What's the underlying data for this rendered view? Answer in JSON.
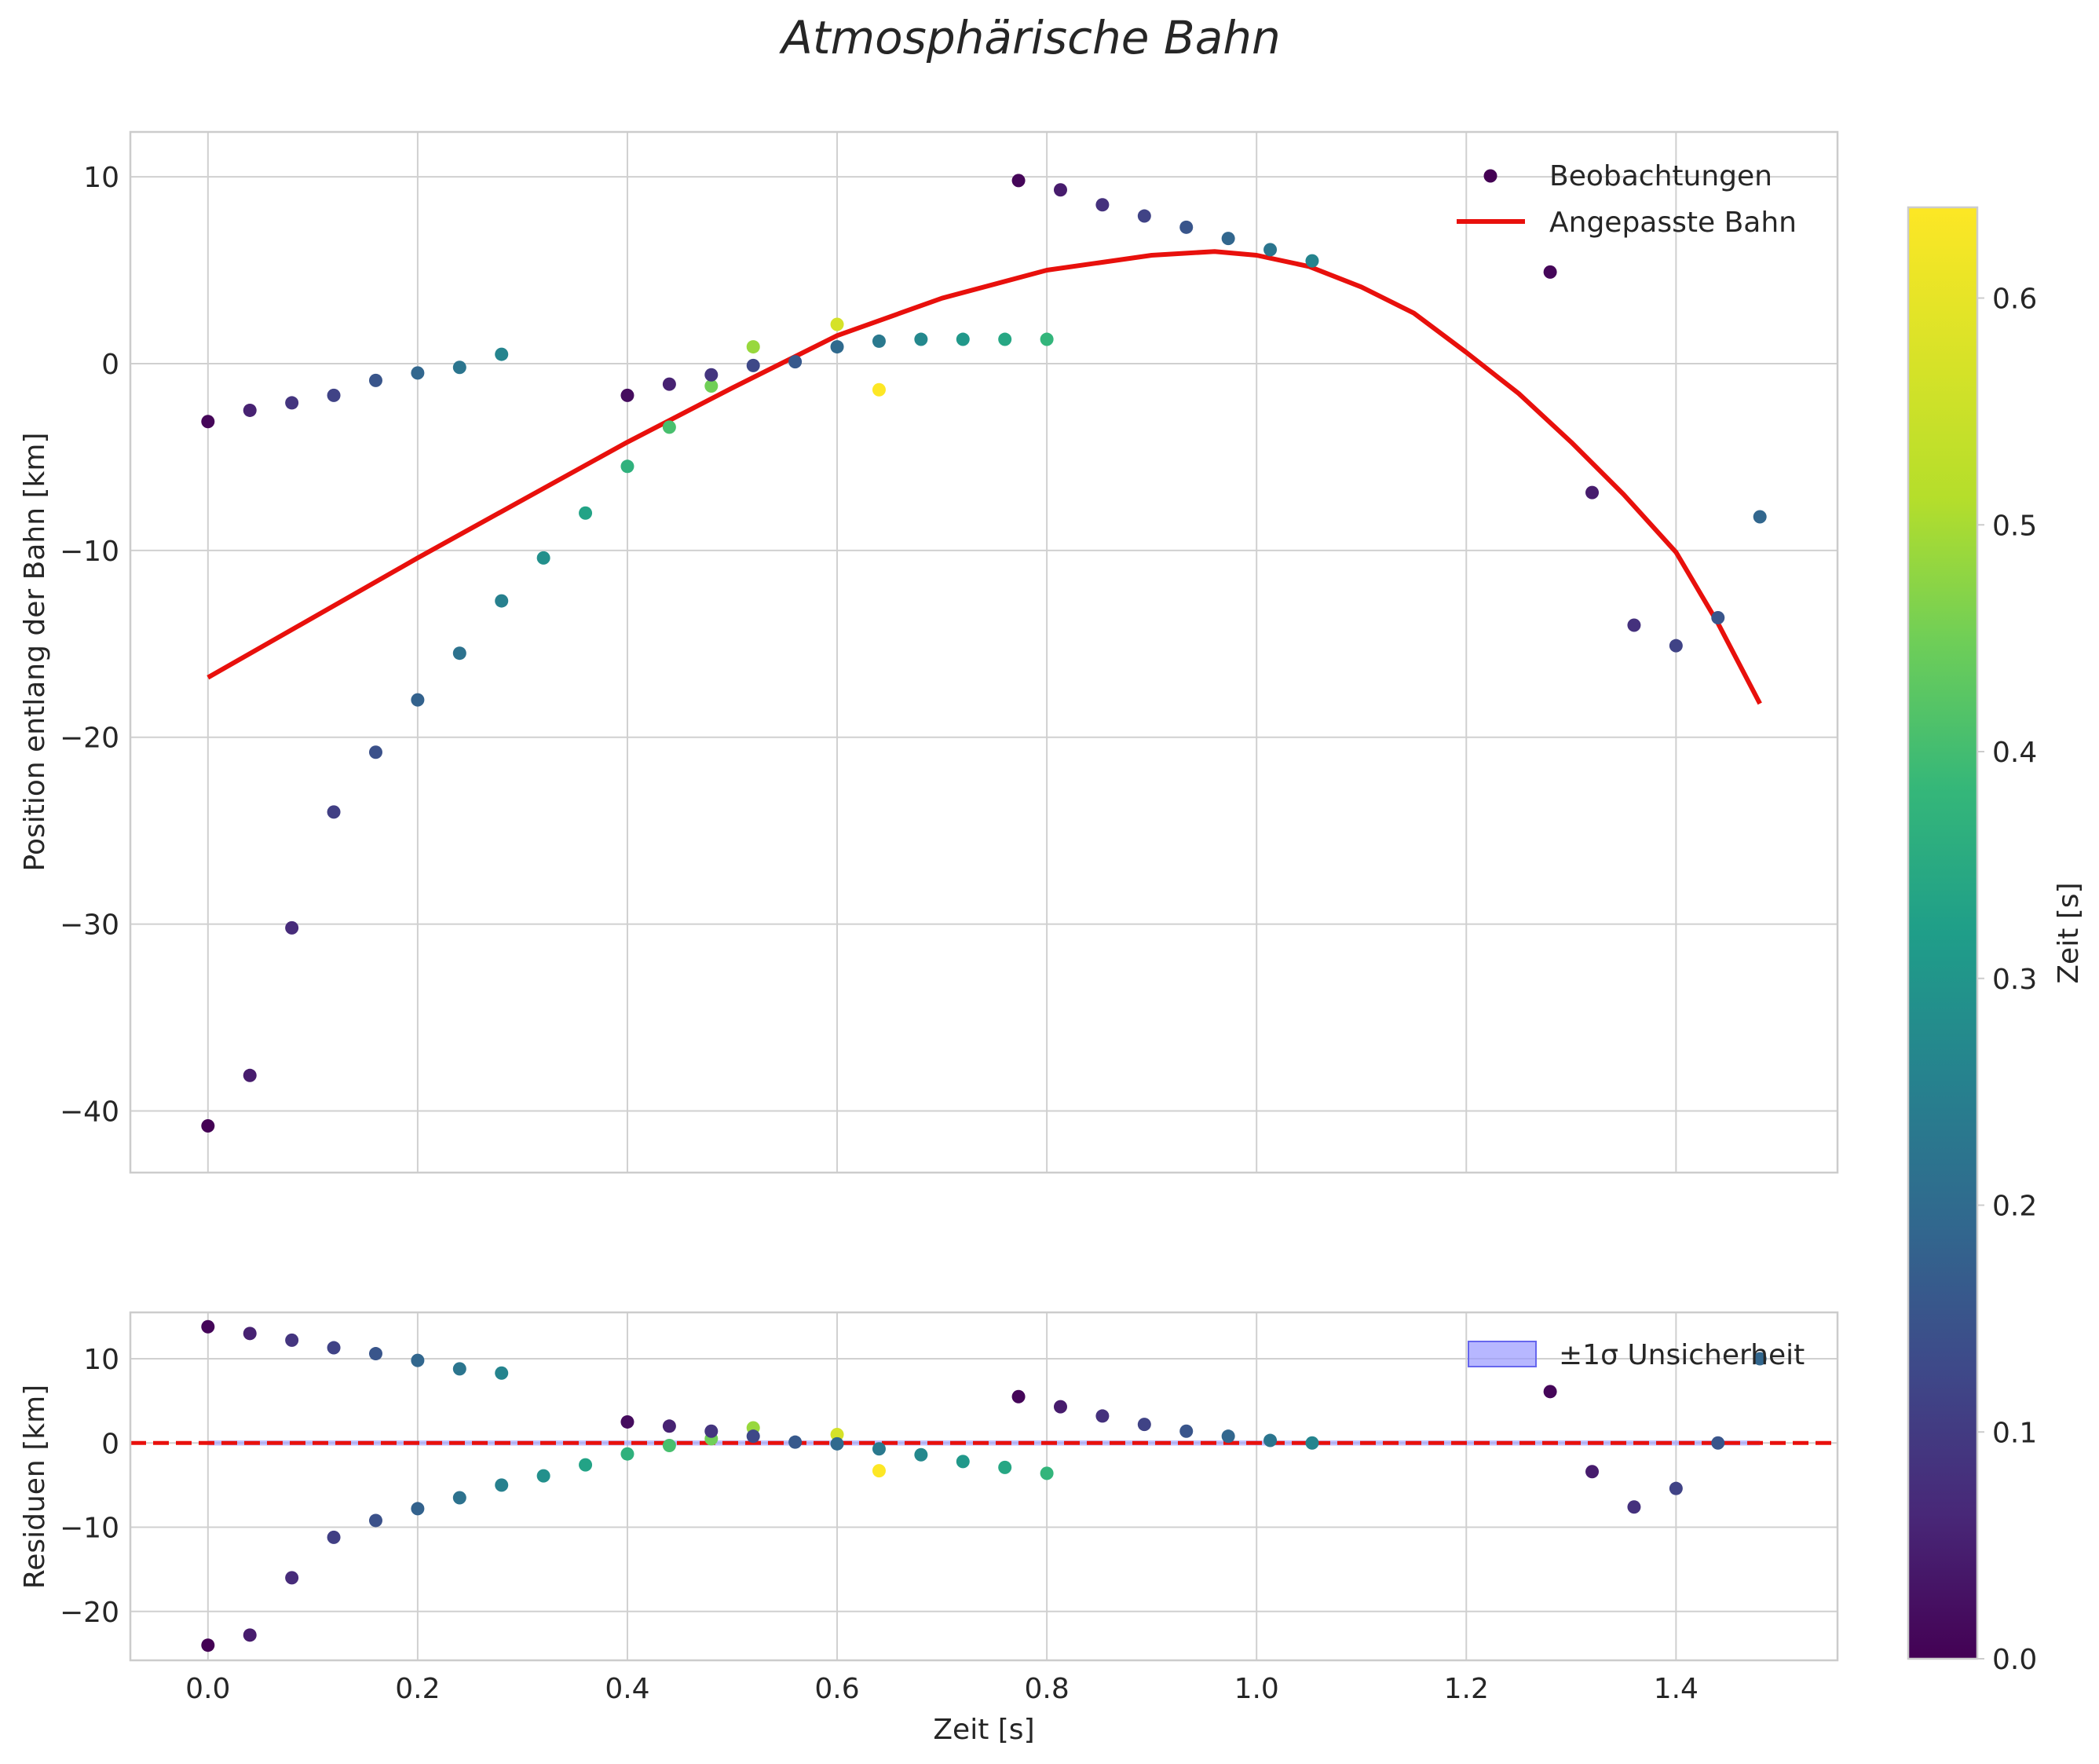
{
  "title": "Atmosphärische Bahn",
  "legend": {
    "observations": "Beobachtungen",
    "fit": "Angepasste Bahn",
    "uncertainty": "±1σ Unsicherheit"
  },
  "colorbar": {
    "label": "Zeit [s]",
    "range": [
      0,
      0.64
    ],
    "ticks": [
      0.0,
      0.1,
      0.2,
      0.3,
      0.4,
      0.5,
      0.6
    ],
    "tick_labels": [
      "0.0",
      "0.1",
      "0.2",
      "0.3",
      "0.4",
      "0.5",
      "0.6"
    ]
  },
  "chart_data": [
    {
      "type": "scatter",
      "title": "Atmosphärische Bahn",
      "xlabel": "",
      "ylabel": "Position entlang der Bahn [km]",
      "xlim": [
        -0.074,
        1.554
      ],
      "ylim": [
        -43.3,
        12.4
      ],
      "xticks": [
        0.0,
        0.2,
        0.4,
        0.6,
        0.8,
        1.0,
        1.2,
        1.4
      ],
      "yticks": [
        -40,
        -30,
        -20,
        -10,
        0,
        10
      ],
      "ytick_labels": [
        "−40",
        "−30",
        "−20",
        "−10",
        "0",
        "10"
      ],
      "grid": true,
      "legend_position": "upper-right",
      "series": [
        {
          "name": "Beobachtungen",
          "kind": "scatter",
          "points": [
            {
              "x": 0.0,
              "y": -40.8,
              "c": 0.0
            },
            {
              "x": 0.04,
              "y": -38.1,
              "c": 0.05
            },
            {
              "x": 0.08,
              "y": -30.2,
              "c": 0.08
            },
            {
              "x": 0.12,
              "y": -24.0,
              "c": 0.12
            },
            {
              "x": 0.16,
              "y": -20.8,
              "c": 0.16
            },
            {
              "x": 0.2,
              "y": -18.0,
              "c": 0.2
            },
            {
              "x": 0.24,
              "y": -15.5,
              "c": 0.24
            },
            {
              "x": 0.28,
              "y": -12.7,
              "c": 0.28
            },
            {
              "x": 0.32,
              "y": -10.4,
              "c": 0.32
            },
            {
              "x": 0.36,
              "y": -8.0,
              "c": 0.37
            },
            {
              "x": 0.4,
              "y": -5.5,
              "c": 0.41
            },
            {
              "x": 0.44,
              "y": -3.4,
              "c": 0.45
            },
            {
              "x": 0.48,
              "y": -1.2,
              "c": 0.5
            },
            {
              "x": 0.52,
              "y": 0.9,
              "c": 0.54
            },
            {
              "x": 0.6,
              "y": 2.1,
              "c": 0.6
            },
            {
              "x": 0.64,
              "y": -1.4,
              "c": 0.64
            },
            {
              "x": 0.0,
              "y": -3.1,
              "c": 0.01
            },
            {
              "x": 0.04,
              "y": -2.5,
              "c": 0.06
            },
            {
              "x": 0.08,
              "y": -2.1,
              "c": 0.1
            },
            {
              "x": 0.12,
              "y": -1.7,
              "c": 0.13
            },
            {
              "x": 0.16,
              "y": -0.9,
              "c": 0.17
            },
            {
              "x": 0.2,
              "y": -0.5,
              "c": 0.21
            },
            {
              "x": 0.24,
              "y": -0.2,
              "c": 0.25
            },
            {
              "x": 0.28,
              "y": 0.5,
              "c": 0.29
            },
            {
              "x": 0.4,
              "y": -1.7,
              "c": 0.02
            },
            {
              "x": 0.44,
              "y": -1.1,
              "c": 0.06
            },
            {
              "x": 0.48,
              "y": -0.6,
              "c": 0.1
            },
            {
              "x": 0.52,
              "y": -0.1,
              "c": 0.14
            },
            {
              "x": 0.56,
              "y": 0.1,
              "c": 0.18
            },
            {
              "x": 0.6,
              "y": 0.9,
              "c": 0.22
            },
            {
              "x": 0.64,
              "y": 1.2,
              "c": 0.26
            },
            {
              "x": 0.68,
              "y": 1.3,
              "c": 0.3
            },
            {
              "x": 0.72,
              "y": 1.3,
              "c": 0.34
            },
            {
              "x": 0.76,
              "y": 1.3,
              "c": 0.38
            },
            {
              "x": 0.8,
              "y": 1.3,
              "c": 0.42
            },
            {
              "x": 0.773,
              "y": 9.8,
              "c": 0.01
            },
            {
              "x": 0.813,
              "y": 9.3,
              "c": 0.05
            },
            {
              "x": 0.853,
              "y": 8.5,
              "c": 0.09
            },
            {
              "x": 0.893,
              "y": 7.9,
              "c": 0.13
            },
            {
              "x": 0.933,
              "y": 7.3,
              "c": 0.17
            },
            {
              "x": 0.973,
              "y": 6.7,
              "c": 0.21
            },
            {
              "x": 1.013,
              "y": 6.1,
              "c": 0.25
            },
            {
              "x": 1.053,
              "y": 5.5,
              "c": 0.29
            },
            {
              "x": 1.28,
              "y": 4.9,
              "c": 0.01
            },
            {
              "x": 1.32,
              "y": -6.9,
              "c": 0.05
            },
            {
              "x": 1.36,
              "y": -14.0,
              "c": 0.09
            },
            {
              "x": 1.4,
              "y": -15.1,
              "c": 0.13
            },
            {
              "x": 1.44,
              "y": -13.6,
              "c": 0.17
            },
            {
              "x": 1.48,
              "y": -8.2,
              "c": 0.21
            }
          ]
        },
        {
          "name": "Angepasste Bahn",
          "kind": "line",
          "color": "#e8100c",
          "x": [
            0.0,
            0.1,
            0.2,
            0.3,
            0.4,
            0.5,
            0.6,
            0.7,
            0.8,
            0.9,
            0.96,
            1.0,
            1.05,
            1.1,
            1.15,
            1.2,
            1.25,
            1.3,
            1.35,
            1.4,
            1.44,
            1.48
          ],
          "y": [
            -16.8,
            -13.6,
            -10.4,
            -7.3,
            -4.2,
            -1.3,
            1.5,
            3.5,
            5.0,
            5.8,
            6.0,
            5.8,
            5.2,
            4.1,
            2.7,
            0.6,
            -1.6,
            -4.2,
            -7.0,
            -10.1,
            -13.9,
            -18.2
          ]
        }
      ]
    },
    {
      "type": "scatter",
      "title": "",
      "xlabel": "Zeit [s]",
      "ylabel": "Residuen [km]",
      "xlim": [
        -0.074,
        1.554
      ],
      "ylim": [
        -25.8,
        15.5
      ],
      "xticks": [
        0.0,
        0.2,
        0.4,
        0.6,
        0.8,
        1.0,
        1.2,
        1.4
      ],
      "xtick_labels": [
        "0.0",
        "0.2",
        "0.4",
        "0.6",
        "0.8",
        "1.0",
        "1.2",
        "1.4"
      ],
      "yticks": [
        -20,
        -10,
        0,
        10
      ],
      "ytick_labels": [
        "−20",
        "−10",
        "0",
        "10"
      ],
      "grid": true,
      "legend_position": "upper-right",
      "zero_line": {
        "y": 0,
        "color": "#e8100c",
        "style": "dashed"
      },
      "uncertainty_band": {
        "x_from": 0.0,
        "x_to": 1.48,
        "sigma": 0.3,
        "color": "#9999ff"
      },
      "series": [
        {
          "name": "Residuen",
          "kind": "scatter",
          "points": [
            {
              "x": 0.0,
              "y": 13.8,
              "c": 0.01
            },
            {
              "x": 0.04,
              "y": 13.0,
              "c": 0.06
            },
            {
              "x": 0.08,
              "y": 12.2,
              "c": 0.1
            },
            {
              "x": 0.12,
              "y": 11.3,
              "c": 0.13
            },
            {
              "x": 0.16,
              "y": 10.6,
              "c": 0.17
            },
            {
              "x": 0.2,
              "y": 9.8,
              "c": 0.21
            },
            {
              "x": 0.24,
              "y": 8.8,
              "c": 0.25
            },
            {
              "x": 0.28,
              "y": 8.3,
              "c": 0.29
            },
            {
              "x": 0.0,
              "y": -24.0,
              "c": 0.0
            },
            {
              "x": 0.04,
              "y": -22.8,
              "c": 0.05
            },
            {
              "x": 0.08,
              "y": -16.0,
              "c": 0.08
            },
            {
              "x": 0.12,
              "y": -11.2,
              "c": 0.12
            },
            {
              "x": 0.16,
              "y": -9.2,
              "c": 0.16
            },
            {
              "x": 0.2,
              "y": -7.8,
              "c": 0.2
            },
            {
              "x": 0.24,
              "y": -6.5,
              "c": 0.24
            },
            {
              "x": 0.28,
              "y": -5.0,
              "c": 0.28
            },
            {
              "x": 0.32,
              "y": -3.9,
              "c": 0.32
            },
            {
              "x": 0.36,
              "y": -2.6,
              "c": 0.37
            },
            {
              "x": 0.4,
              "y": -1.3,
              "c": 0.41
            },
            {
              "x": 0.44,
              "y": -0.3,
              "c": 0.45
            },
            {
              "x": 0.48,
              "y": 0.5,
              "c": 0.5
            },
            {
              "x": 0.52,
              "y": 1.8,
              "c": 0.54
            },
            {
              "x": 0.6,
              "y": 1.0,
              "c": 0.6
            },
            {
              "x": 0.64,
              "y": -3.3,
              "c": 0.64
            },
            {
              "x": 0.4,
              "y": 2.5,
              "c": 0.02
            },
            {
              "x": 0.44,
              "y": 2.0,
              "c": 0.06
            },
            {
              "x": 0.48,
              "y": 1.4,
              "c": 0.1
            },
            {
              "x": 0.52,
              "y": 0.8,
              "c": 0.14
            },
            {
              "x": 0.56,
              "y": 0.1,
              "c": 0.18
            },
            {
              "x": 0.6,
              "y": -0.1,
              "c": 0.22
            },
            {
              "x": 0.64,
              "y": -0.7,
              "c": 0.26
            },
            {
              "x": 0.68,
              "y": -1.4,
              "c": 0.3
            },
            {
              "x": 0.72,
              "y": -2.2,
              "c": 0.34
            },
            {
              "x": 0.76,
              "y": -2.9,
              "c": 0.38
            },
            {
              "x": 0.8,
              "y": -3.6,
              "c": 0.42
            },
            {
              "x": 0.773,
              "y": 5.5,
              "c": 0.01
            },
            {
              "x": 0.813,
              "y": 4.3,
              "c": 0.05
            },
            {
              "x": 0.853,
              "y": 3.2,
              "c": 0.09
            },
            {
              "x": 0.893,
              "y": 2.2,
              "c": 0.13
            },
            {
              "x": 0.933,
              "y": 1.4,
              "c": 0.17
            },
            {
              "x": 0.973,
              "y": 0.8,
              "c": 0.21
            },
            {
              "x": 1.013,
              "y": 0.3,
              "c": 0.25
            },
            {
              "x": 1.053,
              "y": 0.0,
              "c": 0.29
            },
            {
              "x": 1.28,
              "y": 6.1,
              "c": 0.01
            },
            {
              "x": 1.32,
              "y": -3.4,
              "c": 0.05
            },
            {
              "x": 1.36,
              "y": -7.6,
              "c": 0.09
            },
            {
              "x": 1.4,
              "y": -5.4,
              "c": 0.13
            },
            {
              "x": 1.44,
              "y": 0.0,
              "c": 0.17
            },
            {
              "x": 1.48,
              "y": 10.0,
              "c": 0.21
            }
          ]
        }
      ]
    }
  ]
}
